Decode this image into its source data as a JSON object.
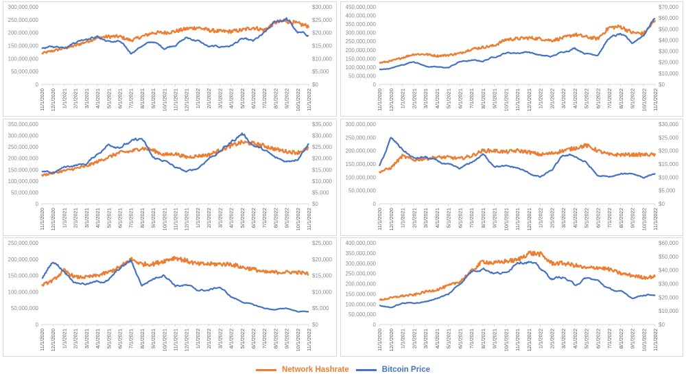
{
  "colors": {
    "hashrate": "#ED7D31",
    "price": "#4472C4",
    "axis": "#d9d9d9",
    "tick_text": "#8c8c8c"
  },
  "legend": [
    {
      "label": "Network Hashrate",
      "color": "#ED7D31"
    },
    {
      "label": "Bitcoin Price",
      "color": "#4472C4"
    }
  ],
  "chart_data": [
    {
      "type": "line",
      "panel": "top-left",
      "x": [
        "11/1/2020",
        "12/1/2020",
        "1/1/2021",
        "2/1/2021",
        "3/1/2021",
        "4/1/2021",
        "5/1/2021",
        "6/1/2021",
        "7/1/2021",
        "8/1/2021",
        "9/1/2021",
        "10/1/2021",
        "11/1/2021",
        "12/1/2021",
        "1/1/2022",
        "2/1/2022",
        "3/1/2022",
        "4/1/2022",
        "5/1/2022",
        "6/1/2022",
        "7/1/2022",
        "8/1/2022",
        "9/1/2022",
        "10/1/2022",
        "11/1/2022"
      ],
      "left_axis": {
        "ticks": [
          "0",
          "50,000,000",
          "100,000,000",
          "150,000,000",
          "200,000,000",
          "250,000,000",
          "300,000,000"
        ],
        "range": [
          0,
          300000000
        ]
      },
      "right_axis": {
        "ticks": [
          "$0",
          "$5,000",
          "$10,000",
          "$15,000",
          "$20,000",
          "$25,000",
          "$30,000"
        ],
        "range": [
          0,
          30000
        ]
      },
      "series": [
        {
          "name": "Network Hashrate",
          "axis": "left",
          "values": [
            120000000,
            130000000,
            140000000,
            150000000,
            165000000,
            180000000,
            185000000,
            185000000,
            170000000,
            185000000,
            200000000,
            200000000,
            205000000,
            215000000,
            220000000,
            210000000,
            205000000,
            205000000,
            210000000,
            220000000,
            210000000,
            240000000,
            245000000,
            235000000,
            225000000
          ]
        },
        {
          "name": "Bitcoin Price",
          "axis": "left_scaled_price",
          "values": [
            14000,
            14500,
            14500,
            16500,
            18000,
            18500,
            16500,
            16500,
            12000,
            15000,
            16500,
            14000,
            15500,
            18000,
            17000,
            14500,
            14500,
            15000,
            17500,
            16500,
            19500,
            24000,
            25500,
            20000,
            19000
          ]
        }
      ]
    },
    {
      "type": "line",
      "panel": "top-right",
      "x": [
        "11/1/2020",
        "12/1/2020",
        "1/1/2021",
        "2/1/2021",
        "3/1/2021",
        "4/1/2021",
        "5/1/2021",
        "6/1/2021",
        "7/1/2021",
        "8/1/2021",
        "9/1/2021",
        "10/1/2021",
        "11/1/2021",
        "12/1/2021",
        "1/1/2022",
        "2/1/2022",
        "3/1/2022",
        "4/1/2022",
        "5/1/2022",
        "6/1/2022",
        "7/1/2022",
        "8/1/2022",
        "9/1/2022",
        "10/1/2022",
        "11/1/2022"
      ],
      "left_axis": {
        "ticks": [
          "0",
          "50,000,000",
          "100,000,000",
          "150,000,000",
          "200,000,000",
          "250,000,000",
          "300,000,000",
          "350,000,000",
          "400,000,000",
          "450,000,000"
        ],
        "range": [
          0,
          450000000
        ]
      },
      "right_axis": {
        "ticks": [
          "$0",
          "$10,000",
          "$20,000",
          "$30,000",
          "$40,000",
          "$50,000",
          "$60,000",
          "$70,000"
        ],
        "range": [
          0,
          70000
        ]
      },
      "series": [
        {
          "name": "Network Hashrate",
          "axis": "left",
          "values": [
            125000000,
            135000000,
            155000000,
            175000000,
            175000000,
            165000000,
            170000000,
            180000000,
            205000000,
            215000000,
            225000000,
            260000000,
            265000000,
            270000000,
            265000000,
            255000000,
            270000000,
            290000000,
            275000000,
            265000000,
            330000000,
            335000000,
            300000000,
            295000000,
            370000000
          ]
        },
        {
          "name": "Bitcoin Price",
          "axis": "right",
          "values": [
            13500,
            14500,
            17500,
            21000,
            16500,
            15500,
            15000,
            20500,
            21500,
            21000,
            25000,
            28500,
            28500,
            29500,
            26000,
            25000,
            29500,
            33000,
            28000,
            27000,
            42000,
            45000,
            37000,
            45000,
            61000
          ]
        }
      ]
    },
    {
      "type": "line",
      "panel": "middle-left",
      "x": [
        "11/1/2020",
        "12/1/2020",
        "1/1/2021",
        "2/1/2021",
        "3/1/2021",
        "4/1/2021",
        "5/1/2021",
        "6/1/2021",
        "7/1/2021",
        "8/1/2021",
        "9/1/2021",
        "10/1/2021",
        "11/1/2021",
        "12/1/2021",
        "1/1/2022",
        "2/1/2022",
        "3/1/2022",
        "4/1/2022",
        "5/1/2022",
        "6/1/2022",
        "7/1/2022",
        "8/1/2022",
        "9/1/2022",
        "10/1/2022",
        "11/1/2022"
      ],
      "left_axis": {
        "ticks": [
          "0",
          "50,000,000",
          "100,000,000",
          "150,000,000",
          "200,000,000",
          "250,000,000",
          "300,000,000",
          "350,000,000"
        ],
        "range": [
          0,
          350000000
        ]
      },
      "right_axis": {
        "ticks": [
          "$0",
          "$5,000",
          "$10,000",
          "$15,000",
          "$20,000",
          "$25,000",
          "$30,000",
          "$35,000"
        ],
        "range": [
          0,
          35000
        ]
      },
      "series": [
        {
          "name": "Network Hashrate",
          "axis": "left",
          "values": [
            125000000,
            135000000,
            145000000,
            155000000,
            165000000,
            185000000,
            205000000,
            225000000,
            230000000,
            245000000,
            235000000,
            215000000,
            220000000,
            205000000,
            210000000,
            215000000,
            235000000,
            255000000,
            270000000,
            265000000,
            255000000,
            240000000,
            230000000,
            225000000,
            245000000
          ]
        },
        {
          "name": "Bitcoin Price",
          "axis": "right",
          "values": [
            14000,
            13500,
            16000,
            17000,
            17500,
            22000,
            26000,
            25500,
            27000,
            28500,
            20000,
            19000,
            16000,
            14000,
            15500,
            20000,
            23000,
            27000,
            31000,
            26000,
            23500,
            20000,
            18500,
            20000,
            27000
          ]
        }
      ]
    },
    {
      "type": "line",
      "panel": "middle-right",
      "x": [
        "11/1/2020",
        "12/1/2020",
        "1/1/2021",
        "2/1/2021",
        "3/1/2021",
        "4/1/2021",
        "5/1/2021",
        "6/1/2021",
        "7/1/2021",
        "8/1/2021",
        "9/1/2021",
        "10/1/2021",
        "11/1/2021",
        "12/1/2021",
        "1/1/2022",
        "2/1/2022",
        "3/1/2022",
        "4/1/2022",
        "5/1/2022",
        "6/1/2022",
        "7/1/2022",
        "8/1/2022",
        "9/1/2022",
        "10/1/2022",
        "11/1/2022"
      ],
      "left_axis": {
        "ticks": [
          "0",
          "50,000,000",
          "100,000,000",
          "150,000,000",
          "200,000,000",
          "250,000,000",
          "300,000,000"
        ],
        "range": [
          0,
          300000000
        ]
      },
      "right_axis": {
        "ticks": [
          "$0",
          "$5,000",
          "$10,000",
          "$15,000",
          "$20,000",
          "$25,000",
          "$30,000"
        ],
        "range": [
          0,
          30000
        ]
      },
      "series": [
        {
          "name": "Network Hashrate",
          "axis": "left",
          "values": [
            120000000,
            135000000,
            180000000,
            165000000,
            170000000,
            175000000,
            175000000,
            170000000,
            180000000,
            200000000,
            200000000,
            195000000,
            200000000,
            195000000,
            185000000,
            190000000,
            200000000,
            210000000,
            220000000,
            200000000,
            185000000,
            185000000,
            185000000,
            185000000,
            185000000
          ]
        },
        {
          "name": "Bitcoin Price",
          "axis": "right",
          "values": [
            14000,
            24500,
            20500,
            17000,
            17500,
            16000,
            14500,
            13000,
            15500,
            18500,
            14500,
            14000,
            13500,
            11500,
            10000,
            12500,
            18000,
            18000,
            15500,
            10500,
            10000,
            11000,
            11500,
            10000,
            11500
          ]
        }
      ]
    },
    {
      "type": "line",
      "panel": "bottom-left",
      "x": [
        "11/1/2020",
        "12/1/2020",
        "1/1/2021",
        "2/1/2021",
        "3/1/2021",
        "4/1/2021",
        "5/1/2021",
        "6/1/2021",
        "7/1/2021",
        "8/1/2021",
        "9/1/2021",
        "10/1/2021",
        "11/1/2021",
        "12/1/2021",
        "1/1/2022",
        "2/1/2022",
        "3/1/2022",
        "4/1/2022",
        "5/1/2022",
        "6/1/2022",
        "7/1/2022",
        "8/1/2022",
        "9/1/2022",
        "10/1/2022",
        "11/1/2022"
      ],
      "left_axis": {
        "ticks": [
          "0",
          "50,000,000",
          "100,000,000",
          "150,000,000",
          "200,000,000",
          "250,000,000"
        ],
        "range": [
          0,
          250000000
        ]
      },
      "right_axis": {
        "ticks": [
          "$0",
          "$5,000",
          "$10,000",
          "$15,000",
          "$20,000",
          "$25,000"
        ],
        "range": [
          0,
          25000
        ]
      },
      "series": [
        {
          "name": "Network Hashrate",
          "axis": "left",
          "values": [
            120000000,
            135000000,
            165000000,
            145000000,
            145000000,
            150000000,
            160000000,
            175000000,
            200000000,
            185000000,
            185000000,
            195000000,
            205000000,
            195000000,
            185000000,
            185000000,
            185000000,
            185000000,
            175000000,
            170000000,
            160000000,
            160000000,
            160000000,
            160000000,
            155000000
          ]
        },
        {
          "name": "Bitcoin Price",
          "axis": "right",
          "values": [
            14000,
            19500,
            16500,
            13000,
            12500,
            13000,
            13500,
            17000,
            19500,
            12000,
            14000,
            15500,
            12000,
            12000,
            10500,
            10500,
            11500,
            8500,
            7000,
            6000,
            5000,
            4500,
            5000,
            4000,
            4000
          ]
        }
      ]
    },
    {
      "type": "line",
      "panel": "bottom-right",
      "x": [
        "11/1/2020",
        "12/1/2020",
        "1/1/2021",
        "2/1/2021",
        "3/1/2021",
        "4/1/2021",
        "5/1/2021",
        "6/1/2021",
        "7/1/2021",
        "8/1/2021",
        "9/1/2021",
        "10/1/2021",
        "11/1/2021",
        "12/1/2021",
        "1/1/2022",
        "2/1/2022",
        "3/1/2022",
        "4/1/2022",
        "5/1/2022",
        "6/1/2022",
        "7/1/2022",
        "8/1/2022",
        "9/1/2022",
        "10/1/2022",
        "11/1/2022"
      ],
      "left_axis": {
        "ticks": [
          "0",
          "50,000,000",
          "100,000,000",
          "150,000,000",
          "200,000,000",
          "250,000,000",
          "300,000,000",
          "350,000,000",
          "400,000,000"
        ],
        "range": [
          0,
          400000000
        ]
      },
      "right_axis": {
        "ticks": [
          "$0",
          "$10,000",
          "$20,000",
          "$30,000",
          "$40,000",
          "$50,000",
          "$60,000"
        ],
        "range": [
          0,
          60000
        ]
      },
      "series": [
        {
          "name": "Network Hashrate",
          "axis": "left",
          "values": [
            120000000,
            130000000,
            140000000,
            145000000,
            160000000,
            170000000,
            190000000,
            210000000,
            260000000,
            310000000,
            300000000,
            310000000,
            315000000,
            350000000,
            345000000,
            300000000,
            300000000,
            290000000,
            275000000,
            280000000,
            270000000,
            250000000,
            240000000,
            230000000,
            235000000
          ]
        },
        {
          "name": "Bitcoin Price",
          "axis": "right",
          "values": [
            14000,
            12500,
            15500,
            16000,
            16500,
            19500,
            22000,
            30000,
            39000,
            42000,
            38000,
            37500,
            47000,
            47000,
            41000,
            33500,
            35000,
            29000,
            34000,
            32000,
            26000,
            24000,
            19500,
            22000,
            22000
          ]
        }
      ]
    }
  ]
}
